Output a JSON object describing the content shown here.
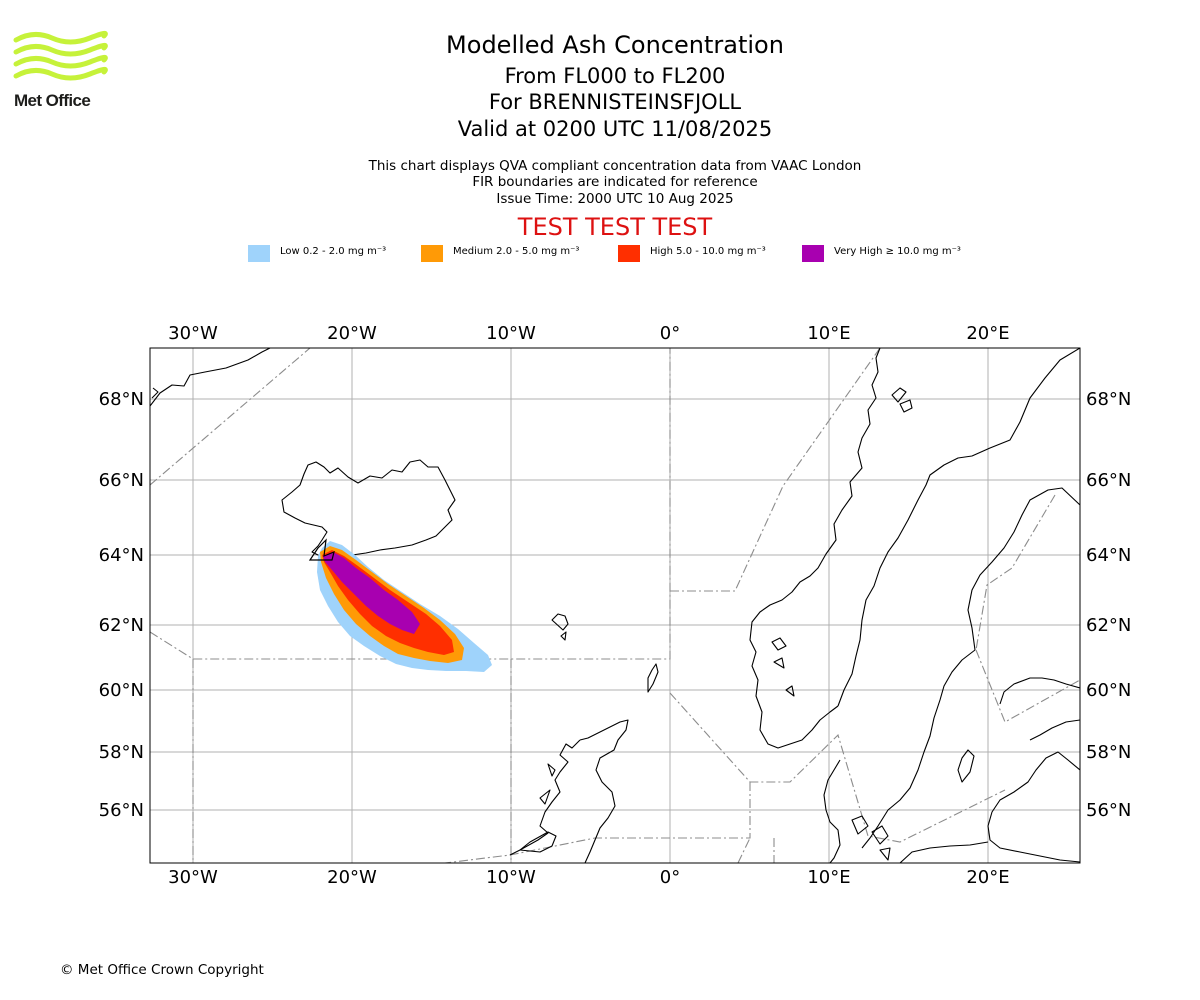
{
  "logo": {
    "text": "Met Office",
    "color": "#c6f23a"
  },
  "header": {
    "title": "Modelled Ash Concentration",
    "levels": "From FL000 to FL200",
    "volcano": "For BRENNISTEINSFJOLL",
    "valid": "Valid at 0200 UTC 11/08/2025",
    "note_1": "This chart displays QVA compliant concentration data from VAAC London",
    "note_2": "FIR boundaries are indicated for reference",
    "note_3": "Issue Time: 2000 UTC 10 Aug 2025",
    "test_banner": "TEST TEST TEST"
  },
  "legend": [
    {
      "label": "Low 0.2 - 2.0 mg m⁻³",
      "color": "#9fd3fb"
    },
    {
      "label": "Medium 2.0 - 5.0 mg m⁻³",
      "color": "#ff9a06"
    },
    {
      "label": "High 5.0 - 10.0 mg m⁻³",
      "color": "#ff2f00"
    },
    {
      "label": "Very High ≥ 10.0 mg m⁻³",
      "color": "#a800b0"
    }
  ],
  "map": {
    "lon_ticks": [
      "30°W",
      "20°W",
      "10°W",
      "0°",
      "10°E",
      "20°E"
    ],
    "lat_ticks": [
      "68°N",
      "66°N",
      "64°N",
      "62°N",
      "60°N",
      "58°N",
      "56°N"
    ],
    "lon_range": [
      -32.7,
      25.5
    ],
    "lat_range": [
      54.6,
      69.3
    ]
  },
  "footer": {
    "copyright": "© Met Office Crown Copyright"
  }
}
